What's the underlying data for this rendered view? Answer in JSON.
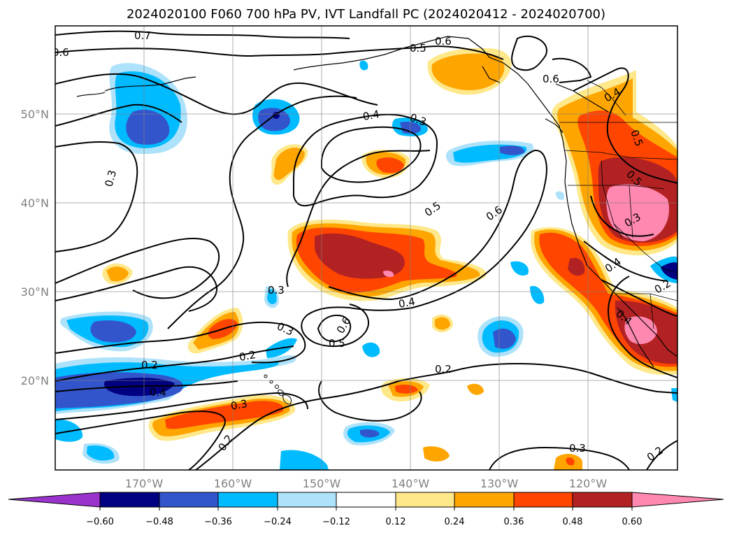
{
  "title": "2024020100 F060 700 hPa PV, IVT Landfall PC (2024020412 - 2024020700)",
  "lat_labels": [
    "50°N",
    "40°N",
    "30°N",
    "20°N"
  ],
  "lon_labels": [
    "170°W",
    "160°W",
    "150°W",
    "140°W",
    "130°W",
    "120°W"
  ],
  "colorbar": {
    "tick_labels": [
      "−0.60",
      "−0.48",
      "−0.36",
      "−0.24",
      "−0.12",
      "0.12",
      "0.24",
      "0.36",
      "0.48",
      "0.60"
    ],
    "colors": [
      "#9933cc",
      "#000080",
      "#3355cc",
      "#00bbff",
      "#aee2fa",
      "#ffffff",
      "#ffe88a",
      "#ffa500",
      "#ff4500",
      "#b22222",
      "#ff88b0"
    ]
  },
  "contour_labels": [
    "0.7",
    "0.6",
    "0.5",
    "0.6",
    "0.6",
    "0.4",
    "0.4",
    "0.3",
    "0.3",
    "0.5",
    "0.6",
    "0.5",
    "0.3",
    "0.5",
    "0.3",
    "0.6",
    "0.5",
    "0.4",
    "0.2",
    "0.2",
    "0.3",
    "0.2",
    "0.4",
    "0.3",
    "0.2",
    "0.2",
    "0.3",
    "0.4",
    "0.4",
    "0.2"
  ],
  "map": {
    "extent": {
      "lon": [
        180,
        110
      ],
      "lat": [
        10,
        60
      ]
    },
    "gridlines": true
  }
}
